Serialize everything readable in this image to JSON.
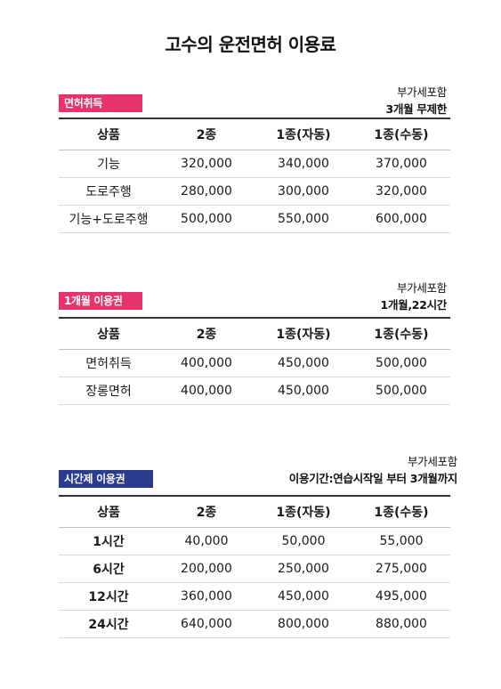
{
  "title": "고수의 운전면허 이용료",
  "colors": {
    "badge_pink": "#e8336b",
    "badge_navy": "#2b3c8f"
  },
  "sections": [
    {
      "badge": "면허취득",
      "note1": "부가세포함",
      "note2": "3개월 무제한",
      "headers": [
        "상품",
        "2종",
        "1종(자동)",
        "1종(수동)"
      ],
      "rows": [
        [
          "기능",
          "320,000",
          "340,000",
          "370,000"
        ],
        [
          "도로주행",
          "280,000",
          "300,000",
          "320,000"
        ],
        [
          "기능+도로주행",
          "500,000",
          "550,000",
          "600,000"
        ]
      ]
    },
    {
      "badge": "1개월 이용권",
      "note1": "부가세포함",
      "note2": "1개월,22시간",
      "headers": [
        "상품",
        "2종",
        "1종(자동)",
        "1종(수동)"
      ],
      "rows": [
        [
          "면허취득",
          "400,000",
          "450,000",
          "500,000"
        ],
        [
          "장롱면허",
          "400,000",
          "450,000",
          "500,000"
        ]
      ]
    },
    {
      "badge": "시간제 이용권",
      "note1": "부가세포함",
      "note2": "이용기간:연습시작일 부터 3개월까지",
      "headers": [
        "상품",
        "2종",
        "1종(자동)",
        "1종(수동)"
      ],
      "rows": [
        [
          "1시간",
          "40,000",
          "50,000",
          "55,000"
        ],
        [
          "6시간",
          "200,000",
          "250,000",
          "275,000"
        ],
        [
          "12시간",
          "360,000",
          "450,000",
          "495,000"
        ],
        [
          "24시간",
          "640,000",
          "800,000",
          "880,000"
        ]
      ]
    }
  ]
}
